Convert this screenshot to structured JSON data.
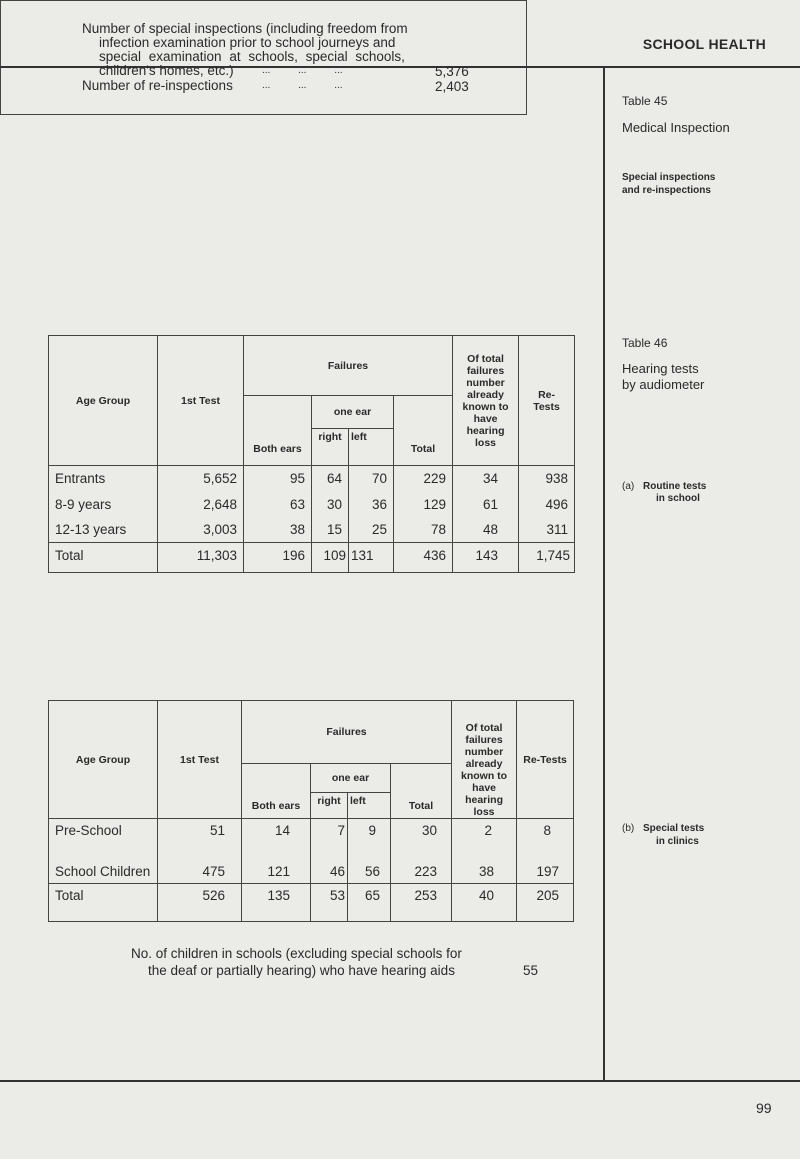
{
  "running_head": "SCHOOL HEALTH",
  "page_number": "99",
  "table45": {
    "side_title": "Table 45",
    "side_subtitle": "Medical Inspection",
    "side_caption_1": "Special inspections",
    "side_caption_2": "and re-inspections",
    "line1": "Number of special inspections (including freedom from",
    "line2": "infection examination prior to school journeys and",
    "line3": "special examination at schools, special schools,",
    "line4": "children's homes, etc.)",
    "dots": "...          ...          ...",
    "value1": "5,376",
    "line5": "Number of re-inspections",
    "value2": "2,403"
  },
  "table46": {
    "side_title": "Table 46",
    "side_subtitle_1": "Hearing tests",
    "side_subtitle_2": "by audiometer",
    "side_part_label": "(a)",
    "side_part_1": "Routine tests",
    "side_part_2": "in school",
    "headers": {
      "age_group": "Age Group",
      "first_test": "1st Test",
      "failures": "Failures",
      "both_ears": "Both ears",
      "one_ear": "one ear",
      "right": "right",
      "left": "left",
      "total": "Total",
      "known": "Of total failures number already known to have hearing loss",
      "retests": "Re-Tests"
    },
    "rows": [
      {
        "age": "Entrants",
        "first": "5,652",
        "both": "95",
        "right": "64",
        "left": "70",
        "total": "229",
        "known": "34",
        "retests": "938"
      },
      {
        "age": "8-9 years",
        "first": "2,648",
        "both": "63",
        "right": "30",
        "left": "36",
        "total": "129",
        "known": "61",
        "retests": "496"
      },
      {
        "age": "12-13 years",
        "first": "3,003",
        "both": "38",
        "right": "15",
        "left": "25",
        "total": "78",
        "known": "48",
        "retests": "311"
      }
    ],
    "total_row": {
      "age": "Total",
      "first": "11,303",
      "both": "196",
      "right": "109",
      "left": "131",
      "total": "436",
      "known": "143",
      "retests": "1,745"
    }
  },
  "table47": {
    "side_part_label": "(b)",
    "side_part_1": "Special tests",
    "side_part_2": "in clinics",
    "headers": {
      "age_group": "Age Group",
      "first_test": "1st Test",
      "failures": "Failures",
      "both_ears": "Both ears",
      "one_ear": "one ear",
      "right": "right",
      "left": "left",
      "total": "Total",
      "known": "Of total failures number already known to have hearing loss",
      "retests": "Re-Tests"
    },
    "rows": [
      {
        "age": "Pre-School",
        "first": "51",
        "both": "14",
        "right": "7",
        "left": "9",
        "total": "30",
        "known": "2",
        "retests": "8"
      },
      {
        "age": "School Children",
        "first": "475",
        "both": "121",
        "right": "46",
        "left": "56",
        "total": "223",
        "known": "38",
        "retests": "197"
      }
    ],
    "total_row": {
      "age": "Total",
      "first": "526",
      "both": "135",
      "right": "53",
      "left": "65",
      "total": "253",
      "known": "40",
      "retests": "205"
    },
    "note_line1": "No. of children in schools (excluding special schools for",
    "note_line2": "the deaf or partially hearing) who have hearing aids",
    "note_value": "55"
  }
}
